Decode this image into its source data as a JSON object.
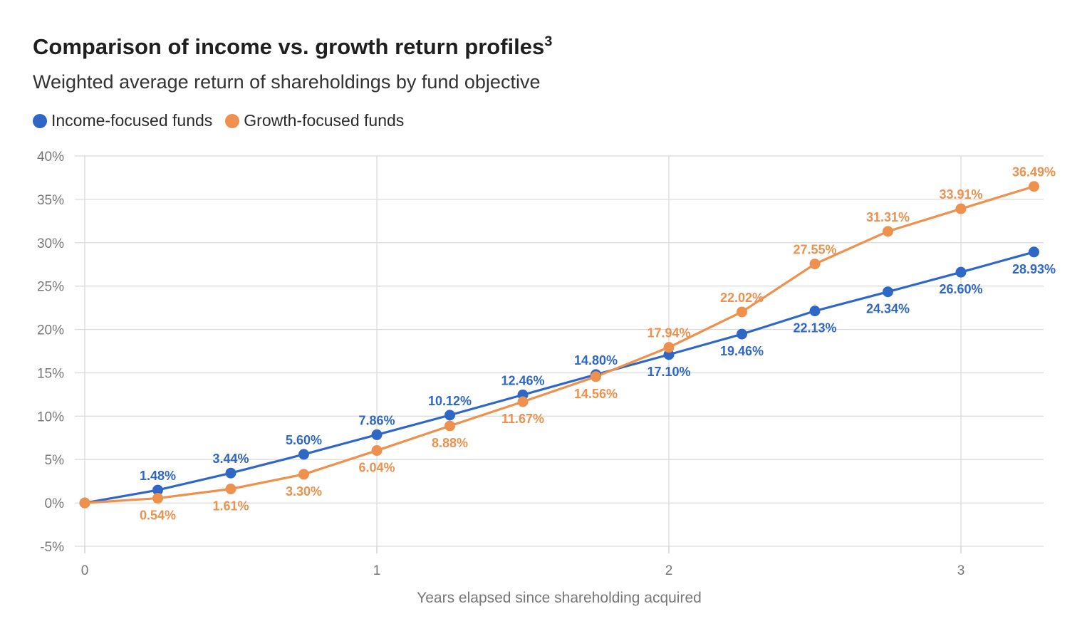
{
  "title": "Comparison of income vs. growth return profiles",
  "title_sup": "3",
  "subtitle": "Weighted average return of shareholdings by fund objective",
  "legend": [
    {
      "label": "Income-focused funds",
      "color": "#2f67c6"
    },
    {
      "label": "Growth-focused funds",
      "color": "#ee904e"
    }
  ],
  "chart_data": {
    "type": "line",
    "title": "Comparison of income vs. growth return profiles",
    "subtitle": "Weighted average return of shareholdings by fund objective",
    "xlabel": "Years elapsed since shareholding acquired",
    "ylabel": "",
    "xlim": [
      0,
      3.25
    ],
    "ylim": [
      -5,
      40
    ],
    "x_ticks": [
      0,
      1,
      2,
      3
    ],
    "y_ticks": [
      -5,
      0,
      5,
      10,
      15,
      20,
      25,
      30,
      35,
      40
    ],
    "y_tick_labels": [
      "-5%",
      "0%",
      "5%",
      "10%",
      "15%",
      "20%",
      "25%",
      "30%",
      "35%",
      "40%"
    ],
    "x": [
      0,
      0.25,
      0.5,
      0.75,
      1,
      1.25,
      1.5,
      1.75,
      2,
      2.25,
      2.5,
      2.75,
      3,
      3.25
    ],
    "grid": true,
    "legend_position": "top-left",
    "series": [
      {
        "name": "Income-focused funds",
        "color": "#2f67c6",
        "values": [
          0,
          1.48,
          3.44,
          5.6,
          7.86,
          10.12,
          12.46,
          14.8,
          17.1,
          19.46,
          22.13,
          24.34,
          26.6,
          28.93
        ],
        "labels": [
          "",
          "1.48%",
          "3.44%",
          "5.60%",
          "7.86%",
          "10.12%",
          "12.46%",
          "14.80%",
          "17.10%",
          "19.46%",
          "22.13%",
          "24.34%",
          "26.60%",
          "28.93%"
        ],
        "label_side": [
          "none",
          "above",
          "above",
          "above",
          "above",
          "above",
          "above",
          "above",
          "below",
          "below",
          "below",
          "below",
          "below",
          "below"
        ]
      },
      {
        "name": "Growth-focused funds",
        "color": "#ee904e",
        "values": [
          0,
          0.54,
          1.61,
          3.3,
          6.04,
          8.88,
          11.67,
          14.56,
          17.94,
          22.02,
          27.55,
          31.31,
          33.91,
          36.49
        ],
        "labels": [
          "",
          "0.54%",
          "1.61%",
          "3.30%",
          "6.04%",
          "8.88%",
          "11.67%",
          "14.56%",
          "17.94%",
          "22.02%",
          "27.55%",
          "31.31%",
          "33.91%",
          "36.49%"
        ],
        "label_side": [
          "none",
          "below",
          "below",
          "below",
          "below",
          "below",
          "below",
          "below",
          "above",
          "above",
          "above",
          "above",
          "above",
          "above"
        ]
      }
    ]
  }
}
